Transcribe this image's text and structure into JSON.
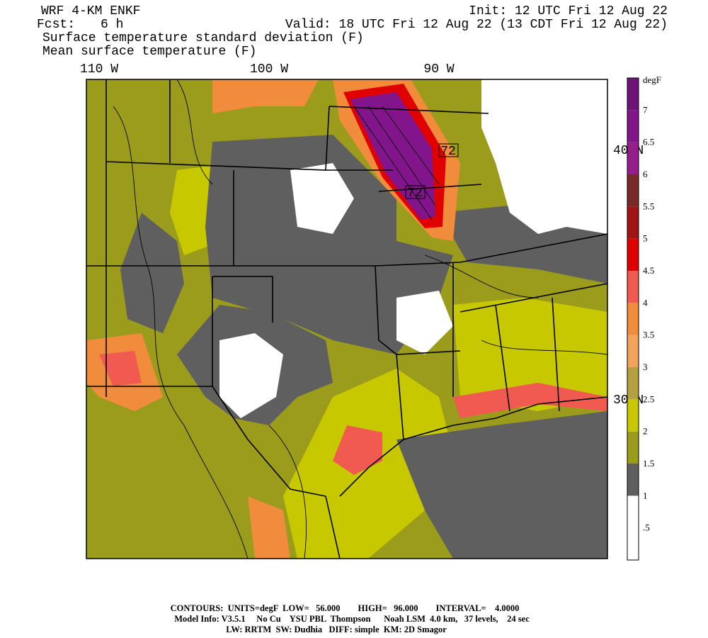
{
  "header": {
    "model": "WRF 4-KM ENKF",
    "init": "Init: 12 UTC Fri 12 Aug 22",
    "fcst_label": "Fcst:",
    "fcst_value": "6 h",
    "valid": "Valid: 18 UTC Fri 12 Aug 22 (13 CDT Fri 12 Aug 22)",
    "field_shaded": "Surface temperature standard deviation (F)",
    "field_contour": "Mean surface temperature (F)"
  },
  "map": {
    "lon_labels": [
      "110 W",
      "100 W",
      "90 W"
    ],
    "lat_labels": [
      "40 N",
      "30 N"
    ],
    "contour_labels": [
      "72",
      "72"
    ]
  },
  "colorbar": {
    "units": "degF",
    "labels": [
      ".5",
      "1",
      "1.5",
      "2",
      "2.5",
      "3",
      "3.5",
      "4",
      "4.5",
      "5",
      "5.5",
      "6",
      "6.5",
      "7"
    ],
    "colors": [
      "#ffffff",
      "#ffffff",
      "#5f5f5f",
      "#9c9c1c",
      "#c8c800",
      "#b4a040",
      "#f4a45a",
      "#f08c3c",
      "#f05a50",
      "#e00000",
      "#a01414",
      "#7a2828",
      "#961e8c",
      "#82148c",
      "#6e1478"
    ]
  },
  "footer": {
    "contours": "CONTOURS:  UNITS=degF  LOW=   56.000        HIGH=   96.000        INTERVAL=    4.0000",
    "model_info": "Model Info: V3.5.1     No Cu    YSU PBL  Thompson      Noah LSM  4.0 km,   37 levels,    24 sec",
    "physics": "LW: RRTM  SW: Dudhia   DIFF: simple  KM: 2D Smagor"
  }
}
